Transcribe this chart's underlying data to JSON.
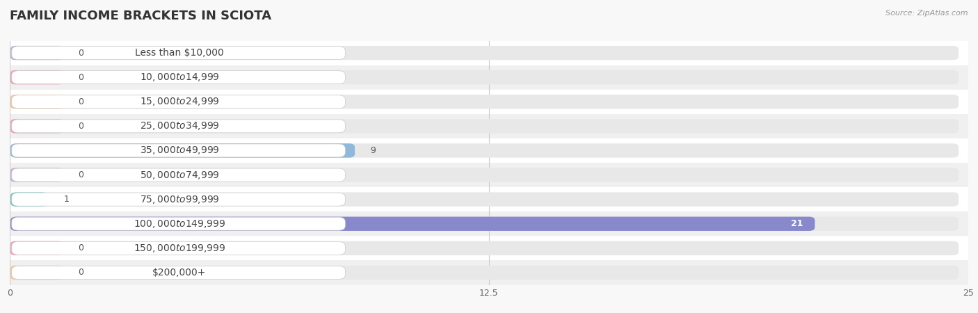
{
  "title": "FAMILY INCOME BRACKETS IN SCIOTA",
  "source": "Source: ZipAtlas.com",
  "categories": [
    "Less than $10,000",
    "$10,000 to $14,999",
    "$15,000 to $24,999",
    "$25,000 to $34,999",
    "$35,000 to $49,999",
    "$50,000 to $74,999",
    "$75,000 to $99,999",
    "$100,000 to $149,999",
    "$150,000 to $199,999",
    "$200,000+"
  ],
  "values": [
    0,
    0,
    0,
    0,
    9,
    0,
    1,
    21,
    0,
    0
  ],
  "bar_colors": [
    "#b8b8d8",
    "#f0a0b8",
    "#f5c898",
    "#f0a0b0",
    "#90b8dc",
    "#c8b0d8",
    "#70c8c0",
    "#8888cc",
    "#f0a0b8",
    "#f5c898"
  ],
  "row_colors": [
    "#ffffff",
    "#f0f0f0"
  ],
  "xlim": [
    0,
    25
  ],
  "xticks": [
    0,
    12.5,
    25
  ],
  "bg_color": "#f8f8f8",
  "title_color": "#333333",
  "source_color": "#999999",
  "value_color_outside": "#555555",
  "value_color_inside": "#ffffff",
  "title_fontsize": 13,
  "label_fontsize": 10,
  "value_fontsize": 9
}
